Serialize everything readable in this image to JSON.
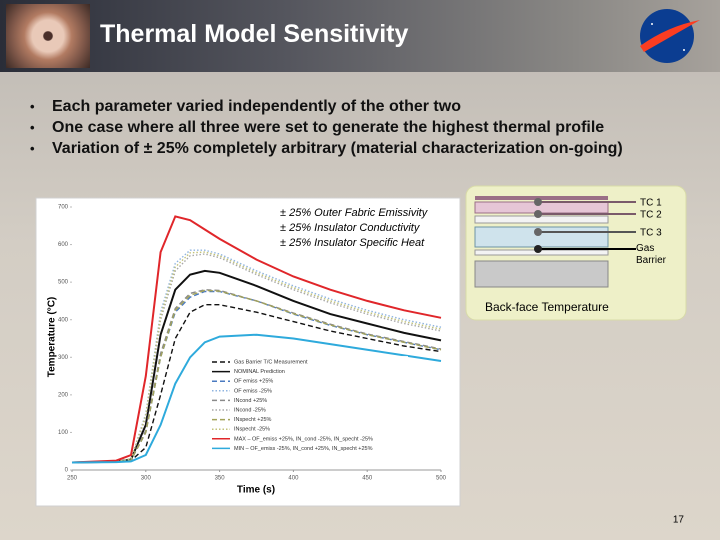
{
  "slide": {
    "title": "Thermal Model Sensitivity",
    "bullets": [
      "Each parameter varied independently of the other two",
      "One case where all three were set to generate the highest thermal profile",
      "Variation of ± 25%  completely arbitrary (material characterization on-going)"
    ],
    "annotations": [
      "± 25% Outer Fabric Emissivity",
      "± 25% Insulator Conductivity",
      "± 25% Insulator Specific Heat"
    ],
    "diagram_labels": [
      "TC 1",
      "TC 2",
      "TC 3",
      "Gas Barrier"
    ],
    "diagram_caption": "Back-face Temperature",
    "page_number": "17"
  },
  "chart_data": {
    "type": "line",
    "x_label": "Time (s)",
    "y_label": "Temperature (°C)",
    "xlim": [
      250,
      500
    ],
    "xticks": [
      250,
      300,
      350,
      400,
      450,
      500
    ],
    "ylim": [
      0,
      700
    ],
    "yticks": [
      0,
      100,
      200,
      300,
      400,
      500,
      600,
      700
    ],
    "grid": false,
    "x": [
      250,
      280,
      290,
      300,
      310,
      320,
      330,
      340,
      350,
      375,
      400,
      425,
      450,
      475,
      500
    ],
    "series": [
      {
        "name": "Gas Barrier T/C Measurement",
        "color": "#111111",
        "dash": "dashed",
        "values": [
          20,
          22,
          25,
          60,
          200,
          350,
          420,
          440,
          440,
          420,
          395,
          370,
          350,
          330,
          315
        ]
      },
      {
        "name": "NOMINAL Prediction",
        "color": "#111111",
        "dash": "solid",
        "values": [
          20,
          22,
          28,
          120,
          360,
          480,
          520,
          530,
          525,
          490,
          450,
          415,
          390,
          365,
          345
        ]
      },
      {
        "name": "OF emiss +25%",
        "color": "#4a7ac0",
        "dash": "dashed",
        "values": [
          20,
          22,
          26,
          100,
          300,
          420,
          460,
          475,
          475,
          450,
          415,
          385,
          360,
          340,
          320
        ]
      },
      {
        "name": "OF emiss -25%",
        "color": "#8fb4e0",
        "dash": "dotted",
        "values": [
          20,
          22,
          30,
          150,
          420,
          550,
          585,
          585,
          575,
          530,
          490,
          455,
          425,
          400,
          380
        ]
      },
      {
        "name": "INcond +25%",
        "color": "#8a8a8a",
        "dash": "dashed",
        "values": [
          20,
          22,
          26,
          105,
          310,
          430,
          470,
          480,
          478,
          450,
          418,
          388,
          362,
          342,
          322
        ]
      },
      {
        "name": "INcond -25%",
        "color": "#a8a8a8",
        "dash": "dotted",
        "values": [
          20,
          22,
          30,
          140,
          400,
          530,
          570,
          575,
          565,
          520,
          480,
          445,
          415,
          390,
          370
        ]
      },
      {
        "name": "INspecht +25%",
        "color": "#a3a35a",
        "dash": "dashed",
        "values": [
          20,
          22,
          26,
          100,
          300,
          425,
          465,
          478,
          476,
          450,
          416,
          386,
          360,
          340,
          320
        ]
      },
      {
        "name": "INspecht -25%",
        "color": "#c2c27a",
        "dash": "dotted",
        "values": [
          20,
          22,
          30,
          145,
          410,
          540,
          578,
          580,
          570,
          525,
          485,
          450,
          420,
          395,
          375
        ]
      },
      {
        "name": "MAX – OF_emiss +25%, IN_cond -25%, IN_specht -25%",
        "color": "#e0262a",
        "dash": "solid",
        "values": [
          20,
          25,
          40,
          250,
          580,
          675,
          665,
          640,
          615,
          560,
          515,
          480,
          450,
          425,
          405
        ]
      },
      {
        "name": "MIN – OF_emiss -25%, IN_cond +25%, IN_specht +25%",
        "color": "#2eaadc",
        "dash": "solid",
        "values": [
          20,
          21,
          23,
          40,
          120,
          230,
          300,
          340,
          355,
          360,
          350,
          335,
          320,
          305,
          290
        ]
      }
    ]
  }
}
